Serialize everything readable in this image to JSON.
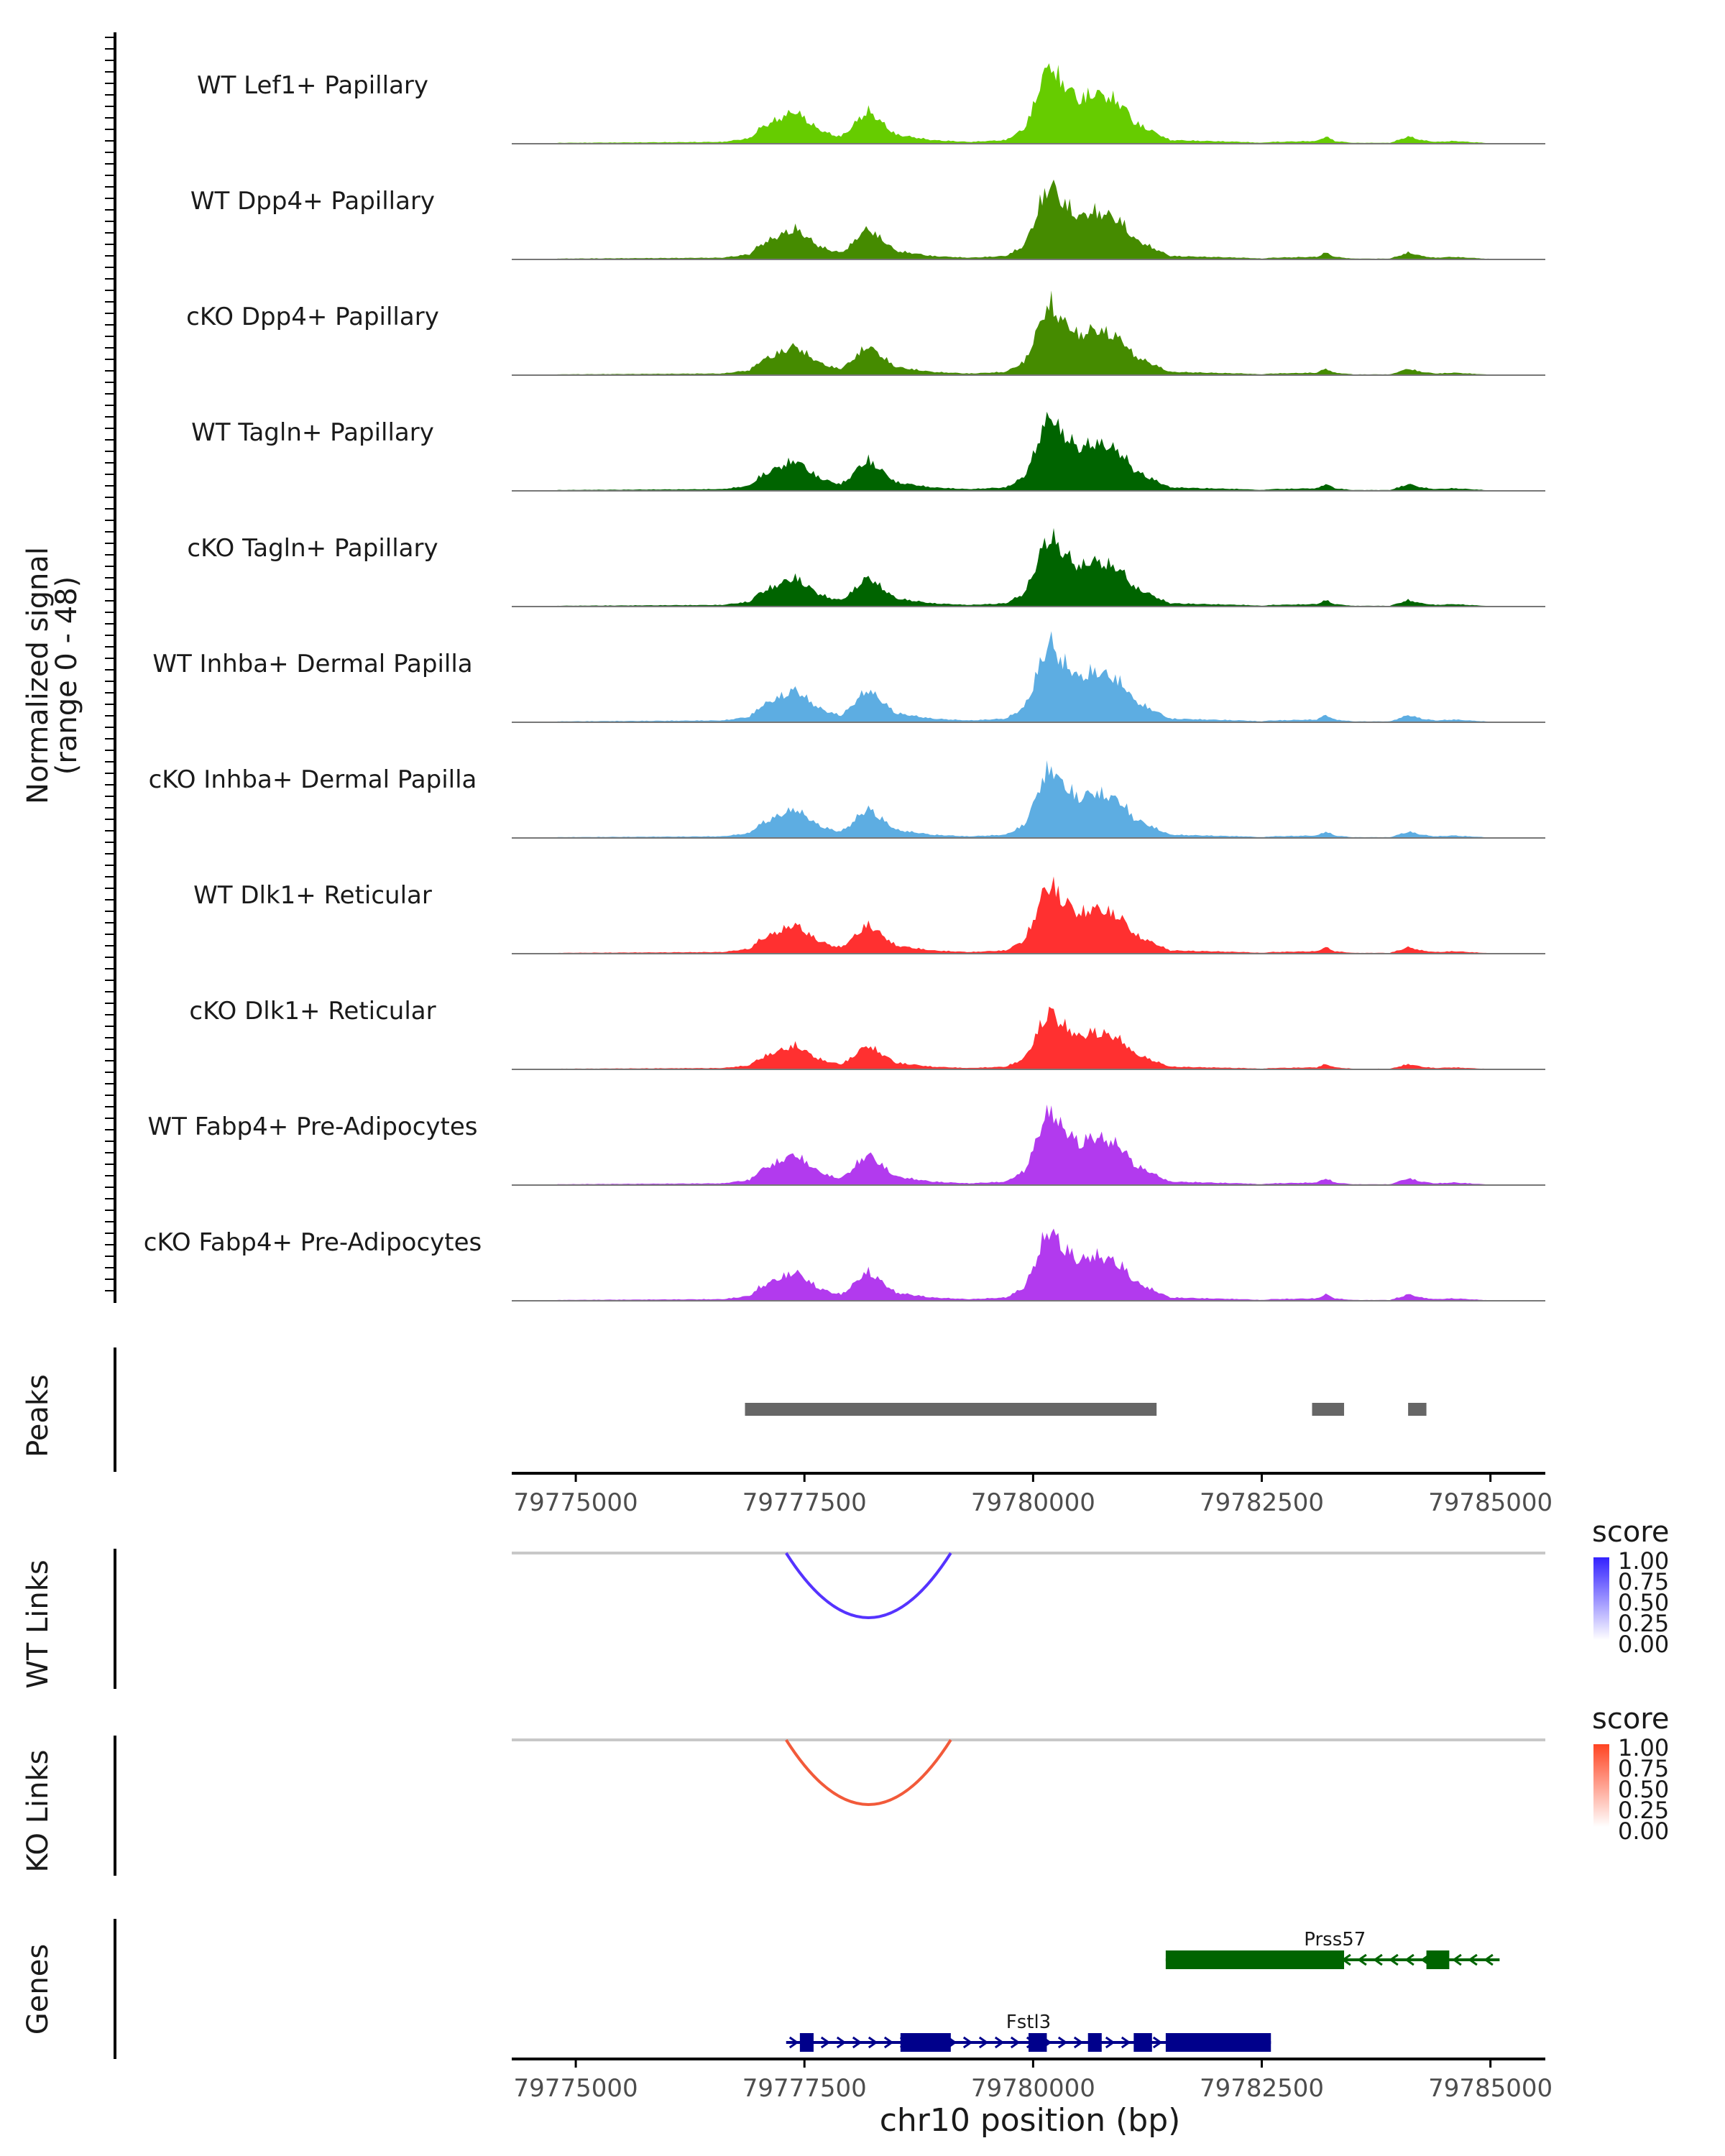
{
  "chart_data": {
    "type": "area",
    "title": "",
    "xlabel": "chr10 position (bp)",
    "x_ticks": [
      79775000,
      79777500,
      79780000,
      79782500,
      79785000
    ],
    "x_tick_labels": [
      "79775000",
      "79777500",
      "79780000",
      "79782500",
      "79785000"
    ],
    "xlim": [
      79774300,
      79785600
    ],
    "coverage": {
      "ylabel": "Normalized signal",
      "ylabel_range": "(range 0 - 48)",
      "ylim": [
        0,
        48
      ],
      "peak_profile": {
        "x": [
          79774800,
          79776600,
          79776900,
          79777000,
          79777150,
          79777400,
          79777500,
          79777650,
          79777800,
          79777900,
          79778000,
          79778100,
          79778200,
          79778500,
          79778900,
          79779300,
          79779700,
          79779900,
          79780000,
          79780100,
          79780200,
          79780300,
          79780400,
          79780500,
          79780650,
          79780800,
          79780900,
          79781000,
          79781100,
          79781500,
          79782300,
          79782500,
          79782600,
          79783100,
          79783200,
          79783300,
          79783500,
          79783900,
          79784050,
          79784100,
          79784250,
          79784400,
          79784600,
          79785100
        ],
        "y": [
          0.5,
          1,
          3,
          8,
          12,
          18,
          14,
          8,
          5,
          4,
          8,
          14,
          18,
          5,
          2,
          1,
          2,
          8,
          20,
          36,
          44,
          34,
          30,
          24,
          28,
          26,
          24,
          20,
          12,
          2,
          1,
          0.5,
          1,
          1.5,
          4,
          1.5,
          0.5,
          0.5,
          3,
          4,
          2,
          1,
          1.5,
          0
        ]
      },
      "tracks": [
        {
          "name": "WT Lef1+ Papillary",
          "color": "#66CC00",
          "scale": 0.95
        },
        {
          "name": "WT Dpp4+ Papillary",
          "color": "#458B00",
          "scale": 0.9
        },
        {
          "name": "cKO Dpp4+ Papillary",
          "color": "#458B00",
          "scale": 0.85
        },
        {
          "name": "WT Tagln+ Papillary",
          "color": "#006400",
          "scale": 0.9
        },
        {
          "name": "cKO Tagln+ Papillary",
          "color": "#006400",
          "scale": 0.85
        },
        {
          "name": "WT Inhba+ Dermal Papilla",
          "color": "#5DADE2",
          "scale": 0.95
        },
        {
          "name": "cKO Inhba+ Dermal Papilla",
          "color": "#5DADE2",
          "scale": 0.85
        },
        {
          "name": "WT Dlk1+ Reticular",
          "color": "#FF3030",
          "scale": 0.85
        },
        {
          "name": "cKO Dlk1+ Reticular",
          "color": "#FF3030",
          "scale": 0.7
        },
        {
          "name": "WT Fabp4+ Pre-Adipocytes",
          "color": "#B23AEE",
          "scale": 0.9
        },
        {
          "name": "cKO Fabp4+ Pre-Adipocytes",
          "color": "#B23AEE",
          "scale": 0.85
        }
      ]
    },
    "peaks": {
      "label": "Peaks",
      "color": "#666666",
      "regions": [
        {
          "start": 79776850,
          "end": 79781350
        },
        {
          "start": 79783050,
          "end": 79783400
        },
        {
          "start": 79784100,
          "end": 79784300
        }
      ]
    },
    "links": [
      {
        "label": "WT Links",
        "legend_title": "score",
        "color": "#5533FF",
        "legend_color": "#3322FF",
        "start": 79777300,
        "end": 79779100,
        "score": 0.75,
        "legend_ticks": [
          "1.00",
          "0.75",
          "0.50",
          "0.25",
          "0.00"
        ]
      },
      {
        "label": "KO Links",
        "legend_title": "score",
        "color": "#F25A3A",
        "legend_color": "#FF4422",
        "start": 79777300,
        "end": 79779100,
        "score": 0.75,
        "legend_ticks": [
          "1.00",
          "0.75",
          "0.50",
          "0.25",
          "0.00"
        ]
      }
    ],
    "genes": {
      "label": "Genes",
      "list": [
        {
          "name": "Prss57",
          "strand": "-",
          "color": "#006400",
          "start": 79781450,
          "end": 79785100,
          "exons": [
            [
              79781450,
              79783400
            ],
            [
              79784300,
              79784550
            ]
          ],
          "label_position": 79783300
        },
        {
          "name": "Fstl3",
          "strand": "+",
          "color": "#00008B",
          "start": 79777300,
          "end": 79782600,
          "exons": [
            [
              79777450,
              79777600
            ],
            [
              79778550,
              79779100
            ],
            [
              79779950,
              79780150
            ],
            [
              79780600,
              79780750
            ],
            [
              79781100,
              79781300
            ],
            [
              79781450,
              79782600
            ]
          ],
          "label_position": 79779950
        }
      ]
    }
  }
}
